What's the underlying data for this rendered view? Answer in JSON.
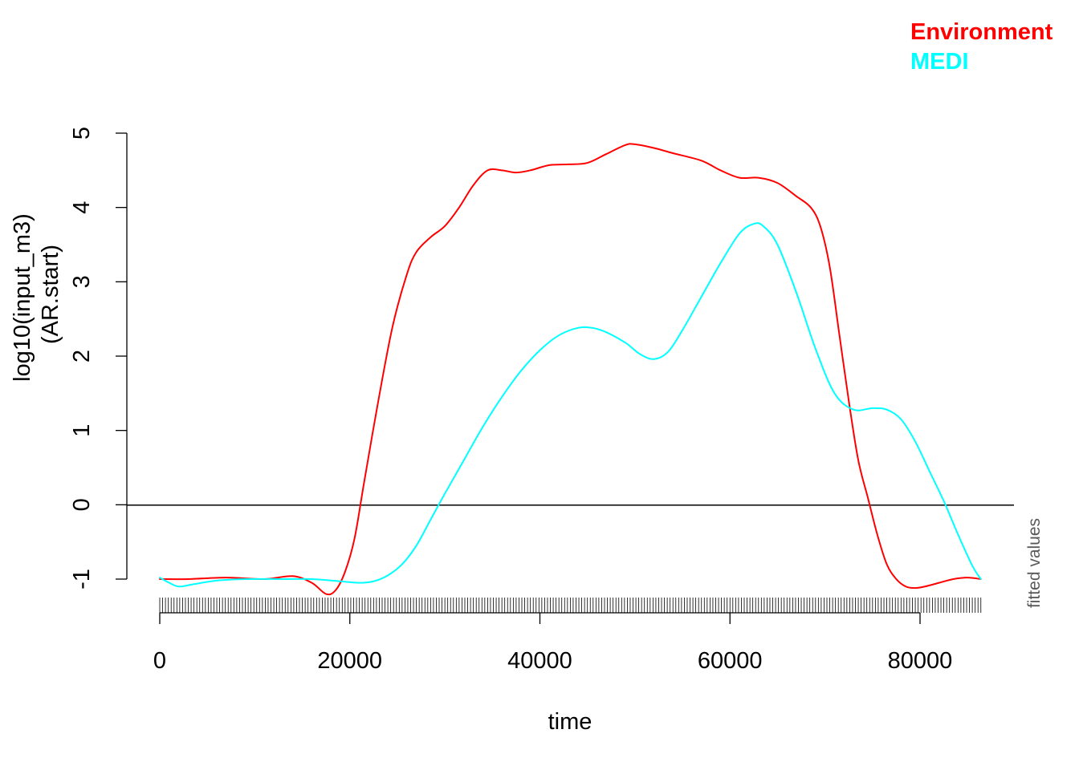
{
  "chart_data": {
    "type": "line",
    "xlabel": "time",
    "ylabel_lines": [
      "log10(input_m3)",
      "(AR.start)"
    ],
    "side_label": "fitted values",
    "xlim": [
      0,
      90000
    ],
    "ylim": [
      -1,
      5
    ],
    "x_ticks": [
      "0",
      "20000",
      "40000",
      "60000",
      "80000"
    ],
    "x_tick_values": [
      0,
      20000,
      40000,
      60000,
      80000
    ],
    "y_ticks": [
      "-1",
      "0",
      "1",
      "2",
      "3",
      "4",
      "5"
    ],
    "y_tick_values": [
      -1,
      0,
      1,
      2,
      3,
      4,
      5
    ],
    "reference_line_y": 0,
    "rug": {
      "from": 0,
      "to": 86400,
      "step": 300
    },
    "legend": {
      "placement": "top-right",
      "entries": [
        {
          "label": "Environment",
          "color": "#ff0000"
        },
        {
          "label": "MEDI",
          "color": "#00ffff"
        }
      ]
    },
    "series": [
      {
        "name": "Environment",
        "color": "#ff0000",
        "points": [
          [
            0,
            -1.0
          ],
          [
            3000,
            -1.0
          ],
          [
            7000,
            -0.98
          ],
          [
            11000,
            -1.0
          ],
          [
            14000,
            -0.96
          ],
          [
            16000,
            -1.05
          ],
          [
            17500,
            -1.2
          ],
          [
            18500,
            -1.15
          ],
          [
            19500,
            -0.9
          ],
          [
            20500,
            -0.45
          ],
          [
            21500,
            0.3
          ],
          [
            23000,
            1.4
          ],
          [
            24500,
            2.4
          ],
          [
            26000,
            3.1
          ],
          [
            27000,
            3.4
          ],
          [
            28500,
            3.6
          ],
          [
            30000,
            3.75
          ],
          [
            31500,
            4.0
          ],
          [
            33000,
            4.3
          ],
          [
            34500,
            4.5
          ],
          [
            36000,
            4.5
          ],
          [
            37500,
            4.47
          ],
          [
            39000,
            4.5
          ],
          [
            41000,
            4.57
          ],
          [
            43000,
            4.58
          ],
          [
            45000,
            4.6
          ],
          [
            47000,
            4.72
          ],
          [
            49000,
            4.84
          ],
          [
            50000,
            4.85
          ],
          [
            52000,
            4.8
          ],
          [
            54000,
            4.73
          ],
          [
            57000,
            4.63
          ],
          [
            59000,
            4.5
          ],
          [
            61000,
            4.4
          ],
          [
            63000,
            4.4
          ],
          [
            65000,
            4.33
          ],
          [
            67000,
            4.15
          ],
          [
            68500,
            4.0
          ],
          [
            69500,
            3.75
          ],
          [
            70500,
            3.2
          ],
          [
            71500,
            2.3
          ],
          [
            72500,
            1.4
          ],
          [
            73500,
            0.6
          ],
          [
            74500,
            0.1
          ],
          [
            75500,
            -0.4
          ],
          [
            76500,
            -0.8
          ],
          [
            77500,
            -1.0
          ],
          [
            78500,
            -1.1
          ],
          [
            79500,
            -1.12
          ],
          [
            80500,
            -1.1
          ],
          [
            82000,
            -1.05
          ],
          [
            83500,
            -1.0
          ],
          [
            85000,
            -0.98
          ],
          [
            86400,
            -1.0
          ]
        ]
      },
      {
        "name": "MEDI",
        "color": "#00ffff",
        "points": [
          [
            0,
            -0.98
          ],
          [
            1000,
            -1.05
          ],
          [
            2000,
            -1.1
          ],
          [
            3500,
            -1.07
          ],
          [
            6000,
            -1.02
          ],
          [
            9000,
            -1.0
          ],
          [
            13000,
            -1.0
          ],
          [
            16000,
            -1.0
          ],
          [
            19000,
            -1.03
          ],
          [
            21000,
            -1.05
          ],
          [
            22500,
            -1.03
          ],
          [
            24000,
            -0.95
          ],
          [
            25500,
            -0.8
          ],
          [
            27000,
            -0.55
          ],
          [
            28500,
            -0.2
          ],
          [
            30000,
            0.15
          ],
          [
            32000,
            0.6
          ],
          [
            34000,
            1.05
          ],
          [
            36000,
            1.45
          ],
          [
            38000,
            1.8
          ],
          [
            40000,
            2.08
          ],
          [
            42000,
            2.28
          ],
          [
            44000,
            2.38
          ],
          [
            45500,
            2.38
          ],
          [
            47000,
            2.32
          ],
          [
            49000,
            2.18
          ],
          [
            50500,
            2.03
          ],
          [
            52000,
            1.96
          ],
          [
            53500,
            2.06
          ],
          [
            55000,
            2.35
          ],
          [
            57000,
            2.8
          ],
          [
            59000,
            3.25
          ],
          [
            61000,
            3.65
          ],
          [
            62500,
            3.78
          ],
          [
            63500,
            3.75
          ],
          [
            65000,
            3.5
          ],
          [
            67000,
            2.85
          ],
          [
            69000,
            2.1
          ],
          [
            71000,
            1.5
          ],
          [
            73000,
            1.28
          ],
          [
            75000,
            1.3
          ],
          [
            76500,
            1.28
          ],
          [
            78000,
            1.15
          ],
          [
            79500,
            0.85
          ],
          [
            81000,
            0.45
          ],
          [
            82500,
            0.05
          ],
          [
            84000,
            -0.4
          ],
          [
            85500,
            -0.82
          ],
          [
            86400,
            -1.0
          ]
        ]
      }
    ]
  }
}
